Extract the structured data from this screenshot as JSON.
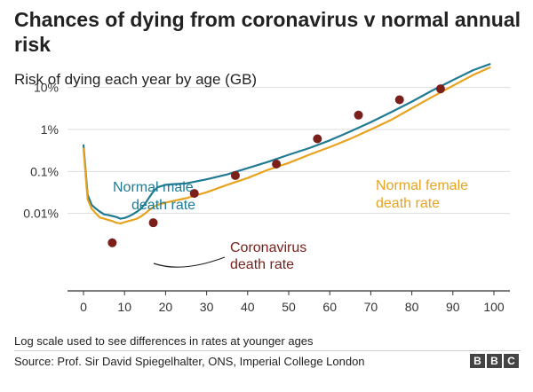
{
  "title": "Chances of dying from coronavirus v normal annual risk",
  "subtitle": "Risk of dying each year by age (GB)",
  "footnote": "Log scale used to see differences in rates at younger ages",
  "source": "Source: Prof. Sir David Spiegelhalter, ONS, Imperial College London",
  "logo": [
    "B",
    "B",
    "C"
  ],
  "colors": {
    "male": "#1f7a93",
    "female": "#e8a31e",
    "covid": "#7a1f1a",
    "grid": "#dddddd",
    "axis": "#333333"
  },
  "chart_data": {
    "type": "line",
    "scale": "log",
    "xlim": [
      0,
      100
    ],
    "ylim": [
      0.0015,
      40
    ],
    "x_ticks": [
      0,
      10,
      20,
      30,
      40,
      50,
      60,
      70,
      80,
      90,
      100
    ],
    "y_ticks": [
      {
        "value": 10,
        "label": "10%"
      },
      {
        "value": 1,
        "label": "1%"
      },
      {
        "value": 0.1,
        "label": "0.1%"
      },
      {
        "value": 0.01,
        "label": "0.01%"
      }
    ],
    "grid": "horizontal",
    "series": [
      {
        "name": "Normal male death rate",
        "type": "line",
        "x": [
          0,
          1,
          2,
          3,
          4,
          5,
          6,
          7,
          8,
          9,
          10,
          11,
          12,
          13,
          14,
          15,
          16,
          17,
          18,
          20,
          22,
          25,
          30,
          35,
          40,
          45,
          50,
          55,
          60,
          65,
          70,
          75,
          80,
          85,
          90,
          95,
          99
        ],
        "values": [
          0.42,
          0.028,
          0.016,
          0.013,
          0.011,
          0.0095,
          0.0092,
          0.0087,
          0.0082,
          0.0075,
          0.0078,
          0.0085,
          0.0095,
          0.011,
          0.013,
          0.017,
          0.024,
          0.033,
          0.042,
          0.048,
          0.05,
          0.052,
          0.065,
          0.085,
          0.12,
          0.17,
          0.25,
          0.36,
          0.55,
          0.9,
          1.5,
          2.6,
          4.6,
          8.5,
          15,
          26,
          36
        ]
      },
      {
        "name": "Normal female death rate",
        "type": "line",
        "x": [
          0,
          1,
          2,
          3,
          4,
          5,
          6,
          7,
          8,
          9,
          10,
          11,
          12,
          13,
          14,
          15,
          16,
          17,
          18,
          20,
          22,
          25,
          30,
          35,
          40,
          45,
          50,
          55,
          60,
          65,
          70,
          75,
          80,
          85,
          90,
          95,
          99
        ],
        "values": [
          0.35,
          0.022,
          0.013,
          0.01,
          0.008,
          0.0075,
          0.007,
          0.0066,
          0.006,
          0.0058,
          0.0062,
          0.0066,
          0.007,
          0.0075,
          0.0085,
          0.01,
          0.012,
          0.014,
          0.016,
          0.018,
          0.02,
          0.023,
          0.032,
          0.048,
          0.07,
          0.11,
          0.16,
          0.25,
          0.38,
          0.6,
          1.0,
          1.7,
          3.2,
          6.0,
          11,
          20,
          30
        ]
      },
      {
        "name": "Coronavirus death rate",
        "type": "scatter",
        "x": [
          7,
          17,
          27,
          37,
          47,
          57,
          67,
          77,
          87
        ],
        "values": [
          0.002,
          0.006,
          0.03,
          0.08,
          0.15,
          0.6,
          2.2,
          5.1,
          9.3
        ]
      }
    ],
    "annotations": [
      {
        "lines": [
          "Normal male",
          "death rate"
        ],
        "series": "male"
      },
      {
        "lines": [
          "Normal female",
          "death rate"
        ],
        "series": "female"
      },
      {
        "lines": [
          "Coronavirus",
          "death rate"
        ],
        "series": "covid"
      }
    ]
  }
}
